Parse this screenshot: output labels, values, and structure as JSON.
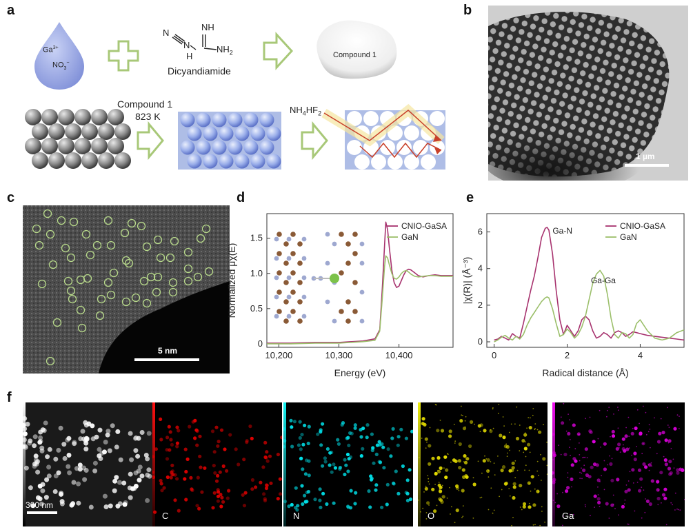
{
  "panels": {
    "a": "a",
    "b": "b",
    "c": "c",
    "d": "d",
    "e": "e",
    "f": "f"
  },
  "panel_a": {
    "ga_label": "Ga",
    "ga_charge": "3+",
    "no3_label": "NO",
    "no3_sub": "3",
    "no3_charge": "−",
    "nh_label": "NH",
    "nh2_label": "NH",
    "nh2_sub": "2",
    "n_label": "N",
    "h_label": "H",
    "dicyandiamide": "Dicyandiamide",
    "compound1": "Compound 1",
    "step_reagent": "Compound 1",
    "step_temp": "823 K",
    "etchant_nh4": "NH",
    "etchant_4": "4",
    "etchant_hf": "HF",
    "etchant_2": "2"
  },
  "panel_b": {
    "scale_label": "1 µm"
  },
  "panel_c": {
    "scale_label": "5 nm"
  },
  "colors": {
    "cnio": "#a7326e",
    "gan": "#9bbf6a",
    "arrow_green": "#a8c878",
    "ga_sphere": "#7cc24a"
  },
  "chart_data": [
    {
      "type": "line",
      "panel": "d",
      "xlabel": "Energy (eV)",
      "ylabel": "Normalized μχ(E)",
      "xlim": [
        10180,
        10490
      ],
      "ylim": [
        -0.05,
        1.85
      ],
      "xticks": [
        10200,
        10300,
        10400
      ],
      "xtick_labels": [
        "10,200",
        "10,300",
        "10,400"
      ],
      "yticks": [
        0,
        0.5,
        1.0,
        1.5
      ],
      "ytick_labels": [
        "0",
        "0.5",
        "1.0",
        "1.5"
      ],
      "legend_position": "top-right",
      "series": [
        {
          "name": "CNIO-GaSA",
          "color": "#a7326e",
          "x": [
            10180,
            10220,
            10260,
            10300,
            10340,
            10360,
            10368,
            10372,
            10376,
            10378,
            10381,
            10384,
            10388,
            10392,
            10396,
            10400,
            10404,
            10408,
            10412,
            10416,
            10420,
            10426,
            10432,
            10440,
            10450,
            10460,
            10470,
            10480,
            10490
          ],
          "y": [
            0.01,
            0.01,
            0.02,
            0.02,
            0.04,
            0.07,
            0.2,
            0.75,
            1.4,
            1.73,
            1.62,
            1.36,
            1.05,
            0.87,
            0.8,
            0.82,
            0.9,
            0.98,
            1.04,
            1.06,
            1.05,
            1.01,
            0.97,
            0.95,
            0.97,
            0.98,
            0.97,
            0.97,
            0.97
          ]
        },
        {
          "name": "GaN",
          "color": "#9bbf6a",
          "x": [
            10180,
            10220,
            10260,
            10300,
            10340,
            10360,
            10368,
            10372,
            10376,
            10378,
            10381,
            10384,
            10388,
            10392,
            10396,
            10400,
            10404,
            10408,
            10412,
            10416,
            10420,
            10426,
            10432,
            10440,
            10450,
            10460,
            10470,
            10480,
            10490
          ],
          "y": [
            0.0,
            0.0,
            0.01,
            0.01,
            0.03,
            0.05,
            0.18,
            0.62,
            1.1,
            1.25,
            1.22,
            1.12,
            1.0,
            0.93,
            0.92,
            0.95,
            1.0,
            1.03,
            1.04,
            1.02,
            0.99,
            0.96,
            0.95,
            0.96,
            0.97,
            0.97,
            0.96,
            0.96,
            0.96
          ]
        }
      ]
    },
    {
      "type": "line",
      "panel": "e",
      "xlabel": "Radical distance (Å)",
      "ylabel": "|χ(R)| (Å⁻³)",
      "xlim": [
        -0.2,
        5.2
      ],
      "ylim": [
        -0.3,
        7.0
      ],
      "xticks": [
        0,
        2,
        4
      ],
      "xtick_labels": [
        "0",
        "2",
        "4"
      ],
      "yticks": [
        0,
        2,
        4,
        6
      ],
      "ytick_labels": [
        "0",
        "2",
        "4",
        "6"
      ],
      "legend_position": "top-right",
      "annotations": [
        {
          "text": "Ga-N",
          "x": 1.6,
          "y": 5.9
        },
        {
          "text": "Ga-Ga",
          "x": 2.65,
          "y": 3.2
        }
      ],
      "series": [
        {
          "name": "CNIO-GaSA",
          "color": "#a7326e",
          "x": [
            0,
            0.1,
            0.2,
            0.3,
            0.4,
            0.5,
            0.6,
            0.7,
            0.8,
            0.9,
            1.0,
            1.1,
            1.2,
            1.3,
            1.4,
            1.45,
            1.5,
            1.6,
            1.7,
            1.8,
            1.9,
            2.0,
            2.1,
            2.2,
            2.3,
            2.4,
            2.5,
            2.6,
            2.7,
            2.8,
            2.9,
            3.0,
            3.1,
            3.2,
            3.3,
            3.4,
            3.5,
            3.6,
            3.7,
            3.8,
            3.9,
            4.0,
            4.2,
            4.4,
            4.6,
            4.8,
            5.0,
            5.2
          ],
          "y": [
            0.1,
            0.15,
            0.3,
            0.2,
            0.1,
            0.45,
            0.3,
            0.2,
            1.0,
            1.9,
            2.8,
            3.6,
            4.6,
            5.7,
            6.2,
            6.25,
            6.1,
            4.8,
            2.8,
            1.2,
            0.4,
            0.9,
            0.6,
            0.3,
            0.6,
            1.2,
            1.4,
            1.2,
            0.6,
            0.2,
            0.3,
            0.5,
            0.4,
            0.2,
            0.5,
            0.6,
            0.5,
            0.3,
            0.4,
            0.55,
            0.5,
            0.45,
            0.35,
            0.3,
            0.25,
            0.2,
            0.15,
            0.1
          ]
        },
        {
          "name": "GaN",
          "color": "#9bbf6a",
          "x": [
            0,
            0.1,
            0.2,
            0.3,
            0.4,
            0.5,
            0.6,
            0.7,
            0.8,
            0.9,
            1.0,
            1.1,
            1.2,
            1.3,
            1.4,
            1.45,
            1.5,
            1.6,
            1.7,
            1.8,
            1.9,
            2.0,
            2.1,
            2.2,
            2.3,
            2.4,
            2.5,
            2.6,
            2.7,
            2.8,
            2.9,
            3.0,
            3.1,
            3.2,
            3.3,
            3.4,
            3.5,
            3.6,
            3.7,
            3.8,
            3.9,
            4.0,
            4.2,
            4.4,
            4.6,
            4.8,
            5.0,
            5.2
          ],
          "y": [
            0.0,
            0.1,
            0.25,
            0.35,
            0.2,
            0.1,
            0.3,
            0.15,
            0.4,
            0.9,
            1.3,
            1.6,
            1.9,
            2.2,
            2.4,
            2.45,
            2.4,
            1.8,
            1.0,
            0.3,
            0.4,
            0.7,
            0.5,
            0.2,
            0.4,
            0.8,
            1.4,
            2.3,
            3.2,
            3.7,
            3.9,
            3.6,
            2.6,
            1.3,
            0.4,
            0.2,
            0.5,
            0.45,
            0.2,
            0.4,
            1.0,
            1.2,
            0.6,
            0.2,
            0.1,
            0.2,
            0.5,
            0.65
          ]
        }
      ]
    }
  ],
  "panel_f": {
    "scale_label": "300 nm",
    "maps": [
      {
        "label": "",
        "color": "#ffffff"
      },
      {
        "label": "C",
        "color": "#e00000"
      },
      {
        "label": "N",
        "color": "#00e0e8"
      },
      {
        "label": "O",
        "color": "#e8e000"
      },
      {
        "label": "Ga",
        "color": "#e000e0"
      }
    ]
  }
}
